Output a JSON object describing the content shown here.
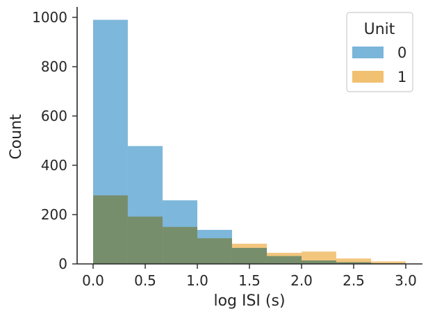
{
  "chart_data": {
    "type": "bar",
    "xlabel": "log ISI (s)",
    "ylabel": "Count",
    "xlim": [
      -0.15,
      3.15
    ],
    "ylim": [
      0,
      1040
    ],
    "x_ticks": [
      "0.0",
      "0.5",
      "1.0",
      "1.5",
      "2.0",
      "2.5",
      "3.0"
    ],
    "y_ticks": [
      "0",
      "200",
      "400",
      "600",
      "800",
      "1000"
    ],
    "bin_edges": [
      0.0,
      0.333,
      0.667,
      1.0,
      1.333,
      1.667,
      2.0,
      2.333,
      2.667,
      3.0
    ],
    "legend": {
      "title": "Unit",
      "placement": "top-right"
    },
    "grid": false,
    "series": [
      {
        "name": "0",
        "color": "#6badd6",
        "values": [
          990,
          478,
          258,
          138,
          65,
          32,
          14,
          7,
          3
        ]
      },
      {
        "name": "1",
        "color": "#f0b962",
        "values": [
          278,
          192,
          150,
          104,
          82,
          45,
          50,
          22,
          10
        ]
      }
    ]
  }
}
